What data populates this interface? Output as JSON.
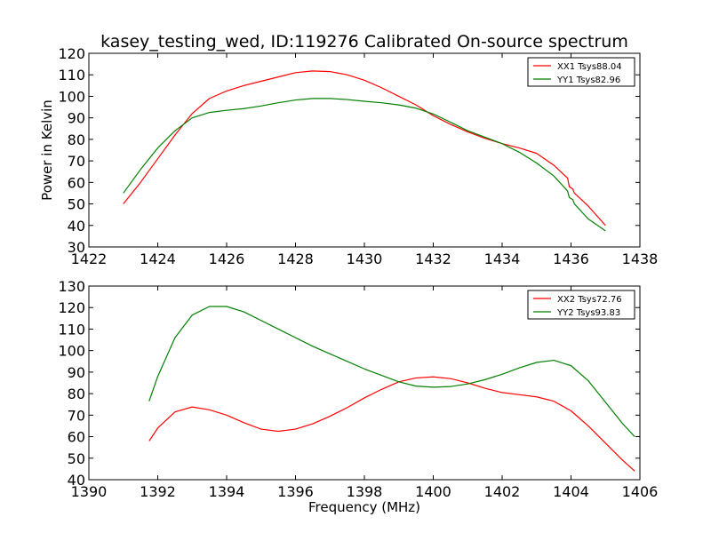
{
  "chart_data": [
    {
      "type": "line",
      "title": "kasey_testing_wed, ID:119276 Calibrated On-source spectrum",
      "xlabel": "",
      "ylabel": "Power in Kelvin",
      "xlim": [
        1422,
        1438
      ],
      "ylim": [
        30,
        120
      ],
      "xticks": [
        1422,
        1424,
        1426,
        1428,
        1430,
        1432,
        1434,
        1436,
        1438
      ],
      "yticks": [
        30,
        40,
        50,
        60,
        70,
        80,
        90,
        100,
        110,
        120
      ],
      "legend_position": "top-right",
      "series": [
        {
          "name": "XX1 Tsys88.04",
          "color": "#ff0000",
          "points": [
            [
              1423.0,
              50
            ],
            [
              1423.5,
              60
            ],
            [
              1424.0,
              71
            ],
            [
              1424.5,
              82
            ],
            [
              1425.0,
              92
            ],
            [
              1425.5,
              99
            ],
            [
              1426.0,
              102.5
            ],
            [
              1426.5,
              105
            ],
            [
              1427.0,
              107
            ],
            [
              1427.5,
              109
            ],
            [
              1428.0,
              111
            ],
            [
              1428.5,
              111.8
            ],
            [
              1429.0,
              111.5
            ],
            [
              1429.5,
              110
            ],
            [
              1430.0,
              107.5
            ],
            [
              1430.5,
              104
            ],
            [
              1431.0,
              100
            ],
            [
              1431.5,
              96
            ],
            [
              1432.0,
              91
            ],
            [
              1432.5,
              87
            ],
            [
              1433.0,
              83.5
            ],
            [
              1433.5,
              80.5
            ],
            [
              1434.0,
              78
            ],
            [
              1434.5,
              76
            ],
            [
              1435.0,
              73.5
            ],
            [
              1435.5,
              68
            ],
            [
              1435.9,
              62
            ],
            [
              1435.95,
              58
            ],
            [
              1436.05,
              57
            ],
            [
              1436.1,
              55
            ],
            [
              1436.5,
              49
            ],
            [
              1437.0,
              40
            ]
          ]
        },
        {
          "name": "YY1 Tsys82.96",
          "color": "#008000",
          "points": [
            [
              1423.0,
              55
            ],
            [
              1423.5,
              66
            ],
            [
              1424.0,
              76
            ],
            [
              1424.5,
              84
            ],
            [
              1425.0,
              90
            ],
            [
              1425.5,
              92.5
            ],
            [
              1426.0,
              93.5
            ],
            [
              1426.5,
              94.3
            ],
            [
              1427.0,
              95.5
            ],
            [
              1427.5,
              97
            ],
            [
              1428.0,
              98.3
            ],
            [
              1428.5,
              99
            ],
            [
              1429.0,
              99
            ],
            [
              1429.5,
              98.5
            ],
            [
              1430.0,
              97.7
            ],
            [
              1430.5,
              97
            ],
            [
              1431.0,
              96
            ],
            [
              1431.5,
              94.5
            ],
            [
              1432.0,
              91.8
            ],
            [
              1432.5,
              88
            ],
            [
              1433.0,
              84
            ],
            [
              1433.5,
              81
            ],
            [
              1434.0,
              78
            ],
            [
              1434.5,
              74
            ],
            [
              1435.0,
              69
            ],
            [
              1435.5,
              63
            ],
            [
              1435.9,
              56
            ],
            [
              1435.95,
              53
            ],
            [
              1436.05,
              52
            ],
            [
              1436.1,
              50
            ],
            [
              1436.5,
              43
            ],
            [
              1437.0,
              37.5
            ]
          ]
        }
      ]
    },
    {
      "type": "line",
      "title": "",
      "xlabel": "Frequency (MHz)",
      "ylabel": "",
      "xlim": [
        1390,
        1406
      ],
      "ylim": [
        40,
        130
      ],
      "xticks": [
        1390,
        1392,
        1394,
        1396,
        1398,
        1400,
        1402,
        1404,
        1406
      ],
      "yticks": [
        40,
        50,
        60,
        70,
        80,
        90,
        100,
        110,
        120,
        130
      ],
      "legend_position": "top-right",
      "series": [
        {
          "name": "XX2 Tsys72.76",
          "color": "#ff0000",
          "points": [
            [
              1391.75,
              58
            ],
            [
              1392.0,
              64
            ],
            [
              1392.5,
              71.5
            ],
            [
              1393.0,
              73.8
            ],
            [
              1393.5,
              72.5
            ],
            [
              1394.0,
              70
            ],
            [
              1394.5,
              66.5
            ],
            [
              1395.0,
              63.5
            ],
            [
              1395.5,
              62.5
            ],
            [
              1396.0,
              63.5
            ],
            [
              1396.5,
              66
            ],
            [
              1397.0,
              69.5
            ],
            [
              1397.5,
              73.5
            ],
            [
              1398.0,
              78
            ],
            [
              1398.5,
              82
            ],
            [
              1399.0,
              85.5
            ],
            [
              1399.5,
              87.3
            ],
            [
              1400.0,
              87.8
            ],
            [
              1400.5,
              87
            ],
            [
              1401.0,
              85
            ],
            [
              1401.5,
              82.5
            ],
            [
              1402.0,
              80.5
            ],
            [
              1402.5,
              79.5
            ],
            [
              1403.0,
              78.5
            ],
            [
              1403.5,
              76.5
            ],
            [
              1404.0,
              72
            ],
            [
              1404.5,
              65
            ],
            [
              1405.0,
              57
            ],
            [
              1405.5,
              49
            ],
            [
              1405.85,
              44
            ]
          ]
        },
        {
          "name": "YY2 Tsys93.83",
          "color": "#008000",
          "points": [
            [
              1391.75,
              76.5
            ],
            [
              1392.0,
              88
            ],
            [
              1392.5,
              106
            ],
            [
              1393.0,
              116.5
            ],
            [
              1393.5,
              120.5
            ],
            [
              1394.0,
              120.5
            ],
            [
              1394.5,
              118
            ],
            [
              1395.0,
              114
            ],
            [
              1395.5,
              110
            ],
            [
              1396.0,
              106
            ],
            [
              1396.5,
              102
            ],
            [
              1397.0,
              98.5
            ],
            [
              1397.5,
              95
            ],
            [
              1398.0,
              91.5
            ],
            [
              1398.5,
              88.5
            ],
            [
              1399.0,
              85.5
            ],
            [
              1399.5,
              83.5
            ],
            [
              1400.0,
              83
            ],
            [
              1400.5,
              83.3
            ],
            [
              1401.0,
              84.5
            ],
            [
              1401.5,
              86.5
            ],
            [
              1402.0,
              89
            ],
            [
              1402.5,
              92
            ],
            [
              1403.0,
              94.5
            ],
            [
              1403.5,
              95.5
            ],
            [
              1404.0,
              93
            ],
            [
              1404.5,
              86
            ],
            [
              1405.0,
              76
            ],
            [
              1405.5,
              66
            ],
            [
              1405.85,
              60
            ]
          ]
        }
      ]
    }
  ]
}
